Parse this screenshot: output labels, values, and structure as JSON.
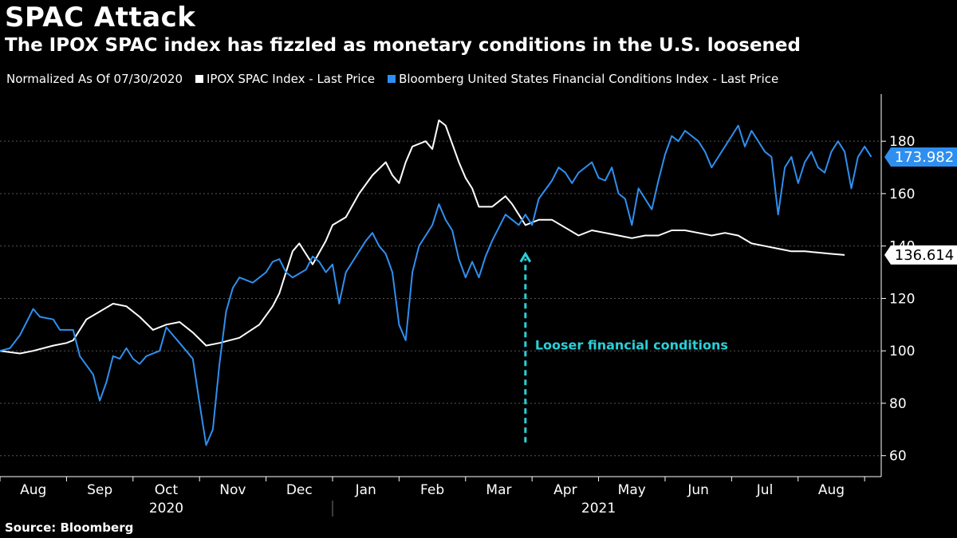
{
  "header": {
    "title": "SPAC Attack",
    "subtitle": "The IPOX SPAC index has fizzled as monetary conditions in the U.S. loosened"
  },
  "legend": {
    "note": "Normalized As Of 07/30/2020",
    "items": [
      {
        "label": "IPOX SPAC Index - Last Price",
        "color": "#ffffff"
      },
      {
        "label": "Bloomberg United States Financial Conditions Index - Last Price",
        "color": "#2f8ff0"
      }
    ]
  },
  "footer": {
    "source": "Source: Bloomberg"
  },
  "chart_data": {
    "type": "line",
    "title": "SPAC Attack",
    "xlabel": "",
    "ylabel": "",
    "ylim": [
      52,
      198
    ],
    "xlim": [
      0,
      13.25
    ],
    "y_ticks": [
      60,
      80,
      100,
      120,
      140,
      160,
      180
    ],
    "x_months": [
      "Aug",
      "Sep",
      "Oct",
      "Nov",
      "Dec",
      "Jan",
      "Feb",
      "Mar",
      "Apr",
      "May",
      "Jun",
      "Jul",
      "Aug"
    ],
    "x_years": [
      "2020",
      "2021"
    ],
    "last_values": [
      {
        "series": "IPOX SPAC Index - Last Price",
        "label": "136.614",
        "value": 136.614
      },
      {
        "series": "Bloomberg United States Financial Conditions Index - Last Price",
        "label": "173.982",
        "value": 173.982
      }
    ],
    "annotation": {
      "text": "Looser financial conditions",
      "x_from": 7.9,
      "y_from": 65,
      "x_to": 7.9,
      "y_to": 137
    },
    "series": [
      {
        "name": "IPOX SPAC Index - Last Price",
        "color": "#ffffff",
        "points": [
          [
            0.0,
            100
          ],
          [
            0.3,
            99
          ],
          [
            0.5,
            100
          ],
          [
            0.8,
            102
          ],
          [
            1.0,
            103
          ],
          [
            1.1,
            104
          ],
          [
            1.3,
            112
          ],
          [
            1.5,
            115
          ],
          [
            1.7,
            118
          ],
          [
            1.9,
            117
          ],
          [
            2.1,
            113
          ],
          [
            2.3,
            108
          ],
          [
            2.5,
            110
          ],
          [
            2.7,
            111
          ],
          [
            2.9,
            107
          ],
          [
            3.1,
            102
          ],
          [
            3.3,
            103
          ],
          [
            3.6,
            105
          ],
          [
            3.9,
            110
          ],
          [
            4.1,
            117
          ],
          [
            4.2,
            122
          ],
          [
            4.4,
            138
          ],
          [
            4.5,
            141
          ],
          [
            4.7,
            133
          ],
          [
            4.9,
            142
          ],
          [
            5.0,
            148
          ],
          [
            5.2,
            151
          ],
          [
            5.4,
            160
          ],
          [
            5.6,
            167
          ],
          [
            5.8,
            172
          ],
          [
            5.9,
            167
          ],
          [
            6.0,
            164
          ],
          [
            6.1,
            172
          ],
          [
            6.2,
            178
          ],
          [
            6.4,
            180
          ],
          [
            6.5,
            177
          ],
          [
            6.6,
            188
          ],
          [
            6.7,
            186
          ],
          [
            6.9,
            172
          ],
          [
            7.0,
            166
          ],
          [
            7.1,
            162
          ],
          [
            7.2,
            155
          ],
          [
            7.4,
            155
          ],
          [
            7.6,
            159
          ],
          [
            7.7,
            156
          ],
          [
            7.8,
            152
          ],
          [
            7.9,
            148
          ],
          [
            8.1,
            150
          ],
          [
            8.3,
            150
          ],
          [
            8.5,
            147
          ],
          [
            8.7,
            144
          ],
          [
            8.9,
            146
          ],
          [
            9.1,
            145
          ],
          [
            9.3,
            144
          ],
          [
            9.5,
            143
          ],
          [
            9.7,
            144
          ],
          [
            9.9,
            144
          ],
          [
            10.1,
            146
          ],
          [
            10.3,
            146
          ],
          [
            10.5,
            145
          ],
          [
            10.7,
            144
          ],
          [
            10.9,
            145
          ],
          [
            11.1,
            144
          ],
          [
            11.3,
            141
          ],
          [
            11.5,
            140
          ],
          [
            11.7,
            139
          ],
          [
            11.9,
            138
          ],
          [
            12.1,
            138
          ],
          [
            12.3,
            137.5
          ],
          [
            12.5,
            137
          ],
          [
            12.7,
            136.6
          ]
        ]
      },
      {
        "name": "Bloomberg United States Financial Conditions Index - Last Price",
        "color": "#2f8ff0",
        "points": [
          [
            0.0,
            100
          ],
          [
            0.15,
            101
          ],
          [
            0.3,
            106
          ],
          [
            0.5,
            116
          ],
          [
            0.6,
            113
          ],
          [
            0.8,
            112
          ],
          [
            0.9,
            108
          ],
          [
            1.1,
            108
          ],
          [
            1.2,
            98
          ],
          [
            1.4,
            91
          ],
          [
            1.5,
            81
          ],
          [
            1.6,
            88
          ],
          [
            1.7,
            98
          ],
          [
            1.8,
            97
          ],
          [
            1.9,
            101
          ],
          [
            2.0,
            97
          ],
          [
            2.1,
            95
          ],
          [
            2.2,
            98
          ],
          [
            2.4,
            100
          ],
          [
            2.5,
            109
          ],
          [
            2.7,
            103
          ],
          [
            2.8,
            100
          ],
          [
            2.9,
            97
          ],
          [
            3.0,
            80
          ],
          [
            3.1,
            64
          ],
          [
            3.2,
            70
          ],
          [
            3.3,
            95
          ],
          [
            3.4,
            115
          ],
          [
            3.5,
            124
          ],
          [
            3.6,
            128
          ],
          [
            3.8,
            126
          ],
          [
            4.0,
            130
          ],
          [
            4.1,
            134
          ],
          [
            4.2,
            135
          ],
          [
            4.3,
            130
          ],
          [
            4.4,
            128
          ],
          [
            4.6,
            131
          ],
          [
            4.7,
            136
          ],
          [
            4.8,
            134
          ],
          [
            4.9,
            130
          ],
          [
            5.0,
            133
          ],
          [
            5.1,
            118
          ],
          [
            5.2,
            130
          ],
          [
            5.4,
            138
          ],
          [
            5.5,
            142
          ],
          [
            5.6,
            145
          ],
          [
            5.7,
            140
          ],
          [
            5.8,
            137
          ],
          [
            5.9,
            130
          ],
          [
            6.0,
            110
          ],
          [
            6.1,
            104
          ],
          [
            6.2,
            130
          ],
          [
            6.3,
            140
          ],
          [
            6.5,
            148
          ],
          [
            6.6,
            156
          ],
          [
            6.7,
            150
          ],
          [
            6.8,
            146
          ],
          [
            6.9,
            135
          ],
          [
            7.0,
            128
          ],
          [
            7.1,
            134
          ],
          [
            7.2,
            128
          ],
          [
            7.3,
            136
          ],
          [
            7.4,
            142
          ],
          [
            7.6,
            152
          ],
          [
            7.7,
            150
          ],
          [
            7.8,
            148
          ],
          [
            7.9,
            152
          ],
          [
            8.0,
            148
          ],
          [
            8.1,
            158
          ],
          [
            8.3,
            165
          ],
          [
            8.4,
            170
          ],
          [
            8.5,
            168
          ],
          [
            8.6,
            164
          ],
          [
            8.7,
            168
          ],
          [
            8.9,
            172
          ],
          [
            9.0,
            166
          ],
          [
            9.1,
            165
          ],
          [
            9.2,
            170
          ],
          [
            9.3,
            160
          ],
          [
            9.4,
            158
          ],
          [
            9.5,
            148
          ],
          [
            9.6,
            162
          ],
          [
            9.7,
            158
          ],
          [
            9.8,
            154
          ],
          [
            9.9,
            165
          ],
          [
            10.0,
            175
          ],
          [
            10.1,
            182
          ],
          [
            10.2,
            180
          ],
          [
            10.3,
            184
          ],
          [
            10.5,
            180
          ],
          [
            10.6,
            176
          ],
          [
            10.7,
            170
          ],
          [
            10.8,
            174
          ],
          [
            11.0,
            182
          ],
          [
            11.1,
            186
          ],
          [
            11.2,
            178
          ],
          [
            11.3,
            184
          ],
          [
            11.5,
            176
          ],
          [
            11.6,
            174
          ],
          [
            11.7,
            152
          ],
          [
            11.8,
            170
          ],
          [
            11.9,
            174
          ],
          [
            12.0,
            164
          ],
          [
            12.1,
            172
          ],
          [
            12.2,
            176
          ],
          [
            12.3,
            170
          ],
          [
            12.4,
            168
          ],
          [
            12.5,
            176
          ],
          [
            12.6,
            180
          ],
          [
            12.7,
            176
          ],
          [
            12.8,
            162
          ],
          [
            12.9,
            174
          ],
          [
            13.0,
            178
          ],
          [
            13.1,
            174
          ]
        ]
      }
    ]
  }
}
